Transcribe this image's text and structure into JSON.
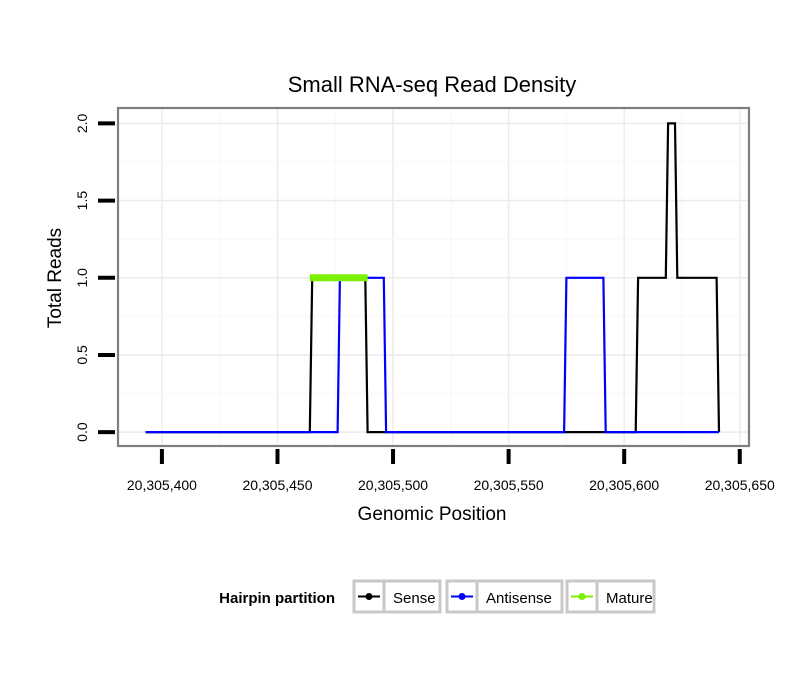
{
  "chart_data": {
    "type": "line",
    "title": "Small RNA-seq Read Density",
    "xlabel": "Genomic Position",
    "ylabel": "Total Reads",
    "xlim": [
      20305381,
      20305654
    ],
    "ylim": [
      -0.09,
      2.1
    ],
    "x_ticks": [
      20305400,
      20305450,
      20305500,
      20305550,
      20305600,
      20305650
    ],
    "x_tick_labels": [
      "20,305,400",
      "20,305,450",
      "20,305,500",
      "20,305,550",
      "20,305,600",
      "20,305,650"
    ],
    "y_ticks": [
      0.0,
      0.5,
      1.0,
      1.5,
      2.0
    ],
    "y_tick_labels": [
      "0.0",
      "0.5",
      "1.0",
      "1.5",
      "2.0"
    ],
    "grid": true,
    "legend_position": "bottom",
    "legend_title": "Hairpin partition",
    "series": [
      {
        "name": "Sense",
        "color": "#000000",
        "x": [
          20305393,
          20305464,
          20305465,
          20305488,
          20305489,
          20305605,
          20305606,
          20305618,
          20305619,
          20305622,
          20305623,
          20305640,
          20305641
        ],
        "y": [
          0,
          0,
          1,
          1,
          0,
          0,
          1,
          1,
          2,
          2,
          1,
          1,
          0
        ]
      },
      {
        "name": "Antisense",
        "color": "#0000ff",
        "x": [
          20305393,
          20305476,
          20305477,
          20305496,
          20305497,
          20305574,
          20305575,
          20305591,
          20305592,
          20305641
        ],
        "y": [
          0,
          0,
          1,
          1,
          0,
          0,
          1,
          1,
          0,
          0
        ]
      },
      {
        "name": "Mature",
        "color": "#7cf000",
        "x": [
          20305464,
          20305489
        ],
        "y": [
          1,
          1
        ]
      }
    ]
  }
}
